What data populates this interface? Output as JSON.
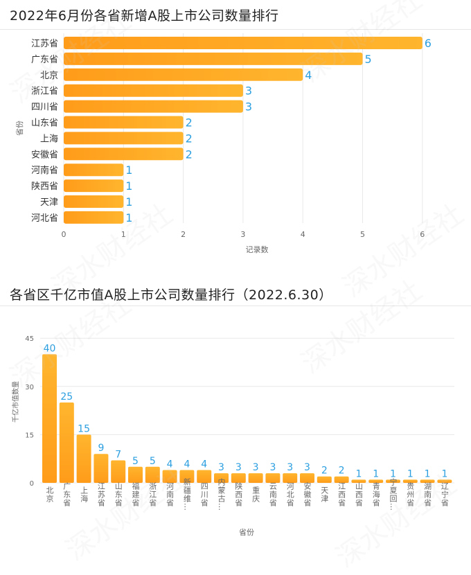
{
  "chart_data": [
    {
      "type": "bar",
      "orientation": "horizontal",
      "title": "2022年6月份各省新增A股上市公司数量排行",
      "xlabel": "记录数",
      "ylabel": "省份",
      "xlim": [
        0,
        6.6
      ],
      "xticks": [
        0,
        1,
        2,
        3,
        4,
        5,
        6
      ],
      "grid": true,
      "categories": [
        "江苏省",
        "广东省",
        "北京",
        "浙江省",
        "四川省",
        "山东省",
        "上海",
        "安徽省",
        "河南省",
        "陕西省",
        "天津",
        "河北省"
      ],
      "values": [
        6,
        5,
        4,
        3,
        3,
        2,
        2,
        2,
        1,
        1,
        1,
        1
      ]
    },
    {
      "type": "bar",
      "orientation": "vertical",
      "title": "各省区千亿市值A股上市公司数量排行（2022.6.30）",
      "xlabel": "省份",
      "ylabel": "千亿市值数量",
      "ylim": [
        0,
        45
      ],
      "yticks": [
        0,
        15,
        30,
        45
      ],
      "grid": true,
      "categories": [
        "北京",
        "广东省",
        "上海",
        "江苏省",
        "山东省",
        "福建省",
        "浙江省",
        "河南省",
        "新疆维…",
        "四川省",
        "内蒙古…",
        "陕西省",
        "重庆",
        "云南省",
        "河北省",
        "安徽省",
        "天津",
        "江西省",
        "山西省",
        "青海省",
        "宁夏回…",
        "贵州省",
        "湖南省",
        "辽宁省"
      ],
      "values": [
        40,
        25,
        15,
        9,
        7,
        5,
        5,
        4,
        4,
        4,
        3,
        3,
        3,
        3,
        3,
        3,
        2,
        2,
        1,
        1,
        1,
        1,
        1,
        1
      ]
    }
  ],
  "colors": {
    "bar_start": "#ff9c1a",
    "bar_end": "#ffb52e",
    "value_label": "#2c9fe0",
    "grid": "#e8e8e8",
    "axis_text": "#666666"
  },
  "watermark": "深水财经社"
}
